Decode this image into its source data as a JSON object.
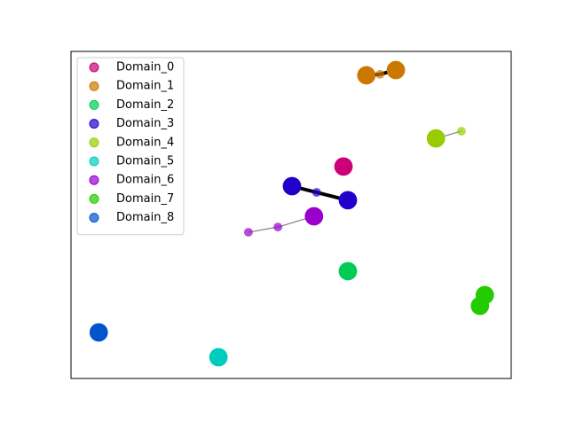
{
  "chart_data": {
    "type": "scatter",
    "legend": "upper left",
    "xlim": [
      0,
      100
    ],
    "ylim": [
      0,
      100
    ],
    "series": [
      {
        "name": "Domain_0",
        "color": "#cc0077",
        "x": [
          61.9
        ],
        "y": [
          64.8
        ],
        "sizes": [
          220
        ]
      },
      {
        "name": "Domain_1",
        "color": "#cc7700",
        "edge_color": "#000000",
        "x": [
          67.1,
          70.2,
          73.8
        ],
        "y": [
          92.7,
          93.0,
          94.3
        ],
        "sizes": [
          220,
          50,
          220
        ]
      },
      {
        "name": "Domain_2",
        "color": "#00cc55",
        "x": [
          62.9
        ],
        "y": [
          32.8
        ],
        "sizes": [
          220
        ]
      },
      {
        "name": "Domain_3",
        "color": "#2200cc",
        "edge_color": "#000000",
        "x": [
          50.2,
          55.8,
          62.9
        ],
        "y": [
          58.8,
          56.9,
          54.5
        ],
        "sizes": [
          220,
          50,
          220
        ]
      },
      {
        "name": "Domain_4",
        "color": "#99cc00",
        "edge_color": "#808080",
        "x": [
          82.9,
          88.7
        ],
        "y": [
          73.4,
          75.6
        ],
        "sizes": [
          220,
          50
        ]
      },
      {
        "name": "Domain_5",
        "color": "#00ccbb",
        "x": [
          33.5
        ],
        "y": [
          6.5
        ],
        "sizes": [
          220
        ]
      },
      {
        "name": "Domain_6",
        "color": "#9900cc",
        "edge_color": "#808080",
        "x": [
          40.3,
          47.0,
          55.2
        ],
        "y": [
          44.7,
          46.3,
          49.6
        ],
        "sizes": [
          50,
          50,
          220
        ]
      },
      {
        "name": "Domain_7",
        "color": "#22cc00",
        "x": [
          94.0,
          92.9
        ],
        "y": [
          25.5,
          22.2
        ],
        "sizes": [
          220,
          220
        ]
      },
      {
        "name": "Domain_8",
        "color": "#0055cc",
        "x": [
          6.3
        ],
        "y": [
          14.1
        ],
        "sizes": [
          220
        ]
      }
    ]
  }
}
